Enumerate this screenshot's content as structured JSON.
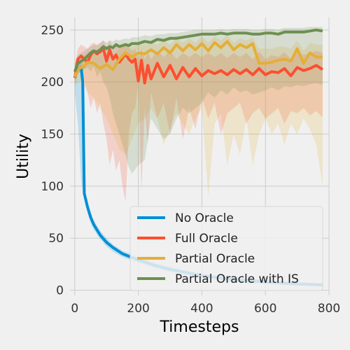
{
  "chart_data": {
    "type": "line",
    "title": "",
    "xlabel": "Timesteps",
    "ylabel": "Utility",
    "xlim": [
      -15,
      800
    ],
    "ylim": [
      -5,
      262
    ],
    "x_ticks": [
      0,
      200,
      400,
      600,
      800
    ],
    "y_ticks": [
      0,
      50,
      100,
      150,
      200,
      250
    ],
    "grid": true,
    "legend_position": "lower-right",
    "series": [
      {
        "name": "No Oracle",
        "color": "#008fd5",
        "x": [
          0,
          10,
          20,
          25,
          30,
          40,
          50,
          60,
          80,
          100,
          120,
          150,
          200,
          250,
          300,
          350,
          400,
          450,
          500,
          550,
          600,
          650,
          700,
          750,
          780
        ],
        "y": [
          205,
          212,
          214,
          200,
          93,
          80,
          70,
          63,
          53,
          46,
          41,
          35,
          29,
          24,
          20,
          17,
          14,
          12,
          10,
          9,
          8,
          7,
          6,
          5.5,
          5
        ],
        "band_upper": [
          215,
          220,
          222,
          215,
          100,
          85,
          75,
          67,
          57,
          50,
          44,
          38,
          32,
          27,
          23,
          19,
          16,
          14,
          12,
          11,
          10,
          9,
          8,
          7,
          7
        ],
        "band_lower": [
          190,
          160,
          105,
          95,
          88,
          75,
          65,
          58,
          49,
          42,
          37,
          32,
          26,
          21,
          17,
          14,
          12,
          10,
          8,
          7,
          6,
          5,
          4.5,
          4,
          3.5
        ]
      },
      {
        "name": "Full Oracle",
        "color": "#fc4f30",
        "x": [
          0,
          10,
          20,
          30,
          40,
          50,
          60,
          70,
          80,
          90,
          100,
          110,
          120,
          130,
          140,
          150,
          160,
          170,
          180,
          190,
          200,
          210,
          220,
          230,
          240,
          260,
          280,
          300,
          320,
          340,
          360,
          380,
          400,
          420,
          440,
          460,
          480,
          500,
          520,
          540,
          560,
          580,
          600,
          620,
          640,
          660,
          680,
          700,
          720,
          740,
          760,
          780
        ],
        "y": [
          204,
          222,
          225,
          222,
          219,
          226,
          230,
          227,
          229,
          232,
          220,
          231,
          222,
          226,
          219,
          223,
          227,
          222,
          219,
          222,
          201,
          221,
          199,
          216,
          203,
          218,
          205,
          216,
          203,
          214,
          205,
          213,
          206,
          211,
          208,
          211,
          207,
          212,
          208,
          212,
          207,
          213,
          207,
          210,
          209,
          213,
          206,
          214,
          211,
          213,
          216,
          212
        ],
        "band_upper": [
          216,
          232,
          236,
          234,
          232,
          236,
          238,
          236,
          238,
          240,
          234,
          240,
          234,
          236,
          232,
          234,
          238,
          233,
          230,
          232,
          222,
          232,
          222,
          228,
          222,
          230,
          224,
          230,
          222,
          228,
          224,
          228,
          224,
          228,
          224,
          228,
          223,
          228,
          224,
          228,
          222,
          229,
          222,
          226,
          224,
          229,
          222,
          229,
          226,
          228,
          230,
          228
        ],
        "band_lower": [
          196,
          208,
          212,
          202,
          190,
          175,
          185,
          170,
          180,
          160,
          145,
          120,
          135,
          115,
          125,
          100,
          85,
          150,
          170,
          175,
          200,
          95,
          175,
          140,
          190,
          165,
          180,
          150,
          185,
          145,
          175,
          155,
          185,
          165,
          180,
          150,
          170,
          175,
          180,
          160,
          170,
          175,
          165,
          170,
          175,
          160,
          172,
          170,
          175,
          168,
          172,
          166
        ]
      },
      {
        "name": "Partial Oracle",
        "color": "#e5ae38",
        "x": [
          0,
          10,
          20,
          30,
          40,
          60,
          80,
          100,
          120,
          140,
          160,
          180,
          200,
          220,
          240,
          260,
          280,
          300,
          320,
          340,
          360,
          380,
          400,
          420,
          440,
          460,
          480,
          500,
          520,
          540,
          560,
          580,
          600,
          620,
          640,
          660,
          680,
          700,
          720,
          740,
          760,
          780
        ],
        "y": [
          205,
          212,
          214,
          215,
          219,
          218,
          213,
          217,
          212,
          222,
          228,
          224,
          228,
          227,
          231,
          227,
          233,
          228,
          236,
          230,
          236,
          231,
          237,
          230,
          238,
          233,
          239,
          231,
          236,
          233,
          237,
          218,
          218,
          219,
          221,
          222,
          220,
          232,
          218,
          228,
          224,
          224
        ],
        "band_upper": [
          214,
          222,
          226,
          226,
          228,
          228,
          226,
          228,
          226,
          232,
          236,
          234,
          236,
          236,
          238,
          236,
          240,
          236,
          242,
          238,
          242,
          238,
          244,
          238,
          244,
          240,
          245,
          238,
          242,
          240,
          243,
          232,
          232,
          232,
          234,
          234,
          232,
          240,
          230,
          238,
          236,
          236
        ],
        "band_lower": [
          196,
          200,
          200,
          196,
          190,
          185,
          175,
          165,
          150,
          135,
          130,
          145,
          160,
          165,
          175,
          165,
          140,
          155,
          170,
          160,
          150,
          165,
          175,
          90,
          160,
          170,
          120,
          150,
          130,
          165,
          120,
          150,
          165,
          150,
          160,
          140,
          160,
          150,
          165,
          155,
          140,
          100
        ]
      },
      {
        "name": "Partial Oracle with IS",
        "color": "#6d904f",
        "x": [
          0,
          10,
          20,
          30,
          40,
          50,
          60,
          70,
          80,
          90,
          100,
          110,
          120,
          130,
          140,
          150,
          160,
          170,
          180,
          200,
          220,
          240,
          260,
          280,
          300,
          320,
          340,
          360,
          380,
          400,
          420,
          440,
          460,
          480,
          500,
          520,
          540,
          560,
          580,
          600,
          620,
          640,
          660,
          680,
          700,
          720,
          740,
          760,
          780
        ],
        "y": [
          210,
          218,
          220,
          222,
          225,
          228,
          230,
          229,
          231,
          234,
          232,
          234,
          233,
          236,
          234,
          235,
          236,
          235,
          237,
          237,
          239,
          238,
          241,
          240,
          242,
          242,
          243,
          244,
          245,
          246,
          246,
          246,
          247,
          246,
          247,
          247,
          247,
          246,
          246,
          247,
          247,
          246,
          248,
          248,
          248,
          248,
          249,
          250,
          249
        ],
        "band_upper": [
          218,
          226,
          228,
          230,
          232,
          234,
          236,
          235,
          237,
          240,
          238,
          240,
          239,
          241,
          240,
          241,
          242,
          241,
          243,
          243,
          245,
          244,
          246,
          246,
          247,
          247,
          248,
          249,
          250,
          250,
          250,
          250,
          251,
          250,
          251,
          251,
          251,
          250,
          250,
          251,
          251,
          250,
          252,
          252,
          252,
          252,
          253,
          253,
          253
        ],
        "band_lower": [
          200,
          208,
          210,
          212,
          214,
          210,
          215,
          205,
          210,
          200,
          195,
          185,
          170,
          160,
          150,
          140,
          130,
          118,
          112,
          120,
          125,
          165,
          155,
          145,
          150,
          165,
          175,
          170,
          175,
          180,
          190,
          185,
          192,
          188,
          195,
          190,
          192,
          188,
          190,
          192,
          195,
          192,
          196,
          195,
          197,
          196,
          198,
          199,
          197
        ]
      }
    ]
  }
}
